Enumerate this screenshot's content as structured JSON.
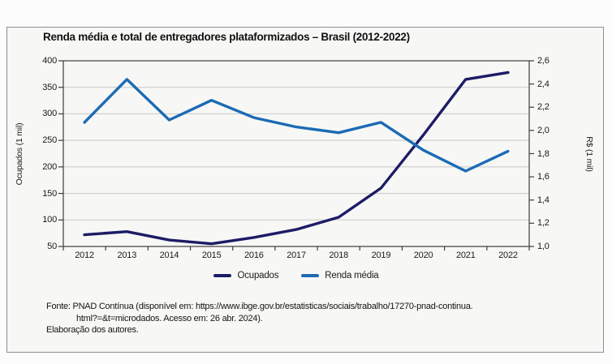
{
  "colors": {
    "page_bg": "#fcfcfc",
    "card_bg": "#f7f7f5",
    "card_border": "#8f8f8f",
    "grid": "#c7c7c7",
    "axis": "#3d3d3d",
    "text": "#1a1a1a",
    "ocupados_line": "#1c1c66",
    "renda_line": "#1b6bb5"
  },
  "chart_data": {
    "type": "line",
    "title": "Renda média e total de entregadores plataformizados – Brasil (2012-2022)",
    "categories": [
      "2012",
      "2013",
      "2014",
      "2015",
      "2016",
      "2017",
      "2018",
      "2019",
      "2020",
      "2021",
      "2022"
    ],
    "series": [
      {
        "name": "Ocupados",
        "axis": "left",
        "color": "#1c1c66",
        "values": [
          72,
          78,
          62,
          55,
          67,
          82,
          105,
          160,
          260,
          365,
          378
        ]
      },
      {
        "name": "Renda média",
        "axis": "right",
        "color": "#1b6bb5",
        "values": [
          2.07,
          2.44,
          2.09,
          2.26,
          2.11,
          2.03,
          1.98,
          2.07,
          1.83,
          1.65,
          1.82
        ]
      }
    ],
    "left_axis": {
      "label": "Ocupados (1 mil)",
      "min": 50,
      "max": 400,
      "tick_labels": [
        "400",
        "350",
        "300",
        "250",
        "200",
        "150",
        "100",
        "50"
      ]
    },
    "right_axis": {
      "label": "R$ (1 mil)",
      "min": 1.0,
      "max": 2.6,
      "tick_labels": [
        "2,6",
        "2,4",
        "2,2",
        "2,0",
        "1,8",
        "1,6",
        "1,4",
        "1,2",
        "1,0"
      ]
    },
    "grid": true,
    "legend_position": "bottom",
    "x_tick_mode": "between"
  },
  "footer": {
    "line1": "Fonte: PNAD Contínua (disponível em: https://www.ibge.gov.br/estatisticas/sociais/trabalho/17270-pnad-continua.",
    "line2": "html?=&t=microdados. Acesso em: 26 abr. 2024).",
    "line3": "Elaboração dos autores."
  }
}
